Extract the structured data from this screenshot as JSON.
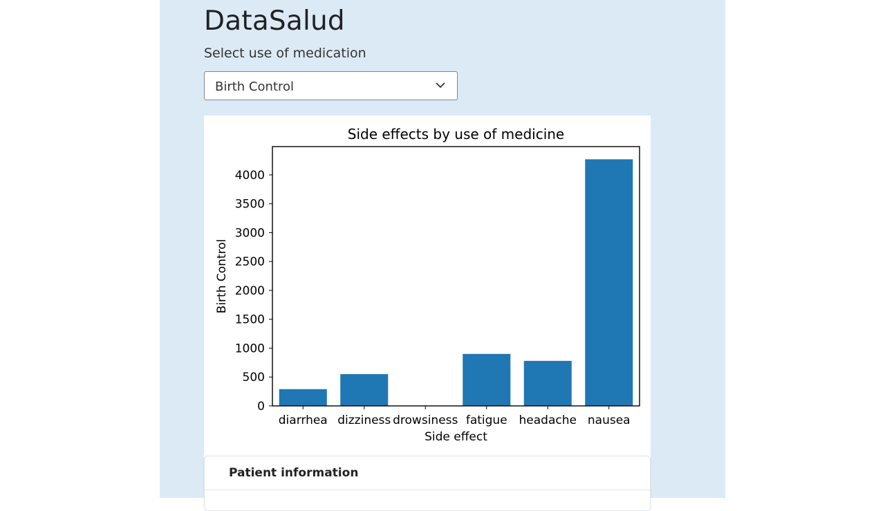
{
  "app": {
    "title": "DataSalud"
  },
  "selector": {
    "label": "Select use of medication",
    "selected": "Birth Control"
  },
  "chart_data": {
    "type": "bar",
    "title": "Side effects by use of medicine",
    "xlabel": "Side effect",
    "ylabel": "Birth Control",
    "categories": [
      "diarrhea",
      "dizziness",
      "drowsiness",
      "fatigue",
      "headache",
      "nausea"
    ],
    "values": [
      290,
      550,
      0,
      900,
      780,
      4270
    ],
    "ylim": [
      0,
      4490
    ],
    "yticks": [
      0,
      500,
      1000,
      1500,
      2000,
      2500,
      3000,
      3500,
      4000
    ],
    "bar_color": "#1f77b4",
    "grid": false
  },
  "patient_section": {
    "title": "Patient information"
  }
}
